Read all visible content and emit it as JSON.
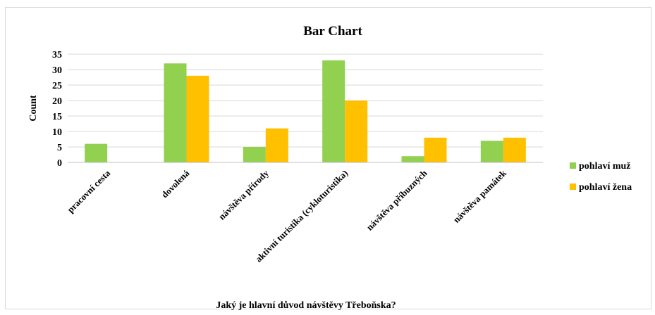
{
  "chart_data": {
    "type": "bar",
    "title": "Bar Chart",
    "xlabel": "Jaký je hlavní důvod návštěvy Třeboňska?",
    "ylabel": "Count",
    "ylim": [
      0,
      35
    ],
    "yticks": [
      0,
      5,
      10,
      15,
      20,
      25,
      30,
      35
    ],
    "grid": true,
    "legend_position": "right",
    "categories": [
      "pracovní cesta",
      "dovolená",
      "návštěva přírody",
      "aktivní turistika (cykloturistika)",
      "návštěva příbuzných",
      "návštěva památek"
    ],
    "series": [
      {
        "name": "pohlaví muž",
        "color": "#92d050",
        "values": [
          6,
          32,
          5,
          33,
          2,
          7
        ]
      },
      {
        "name": "pohlaví žena",
        "color": "#ffc000",
        "values": [
          0,
          28,
          11,
          20,
          8,
          8
        ]
      }
    ]
  }
}
